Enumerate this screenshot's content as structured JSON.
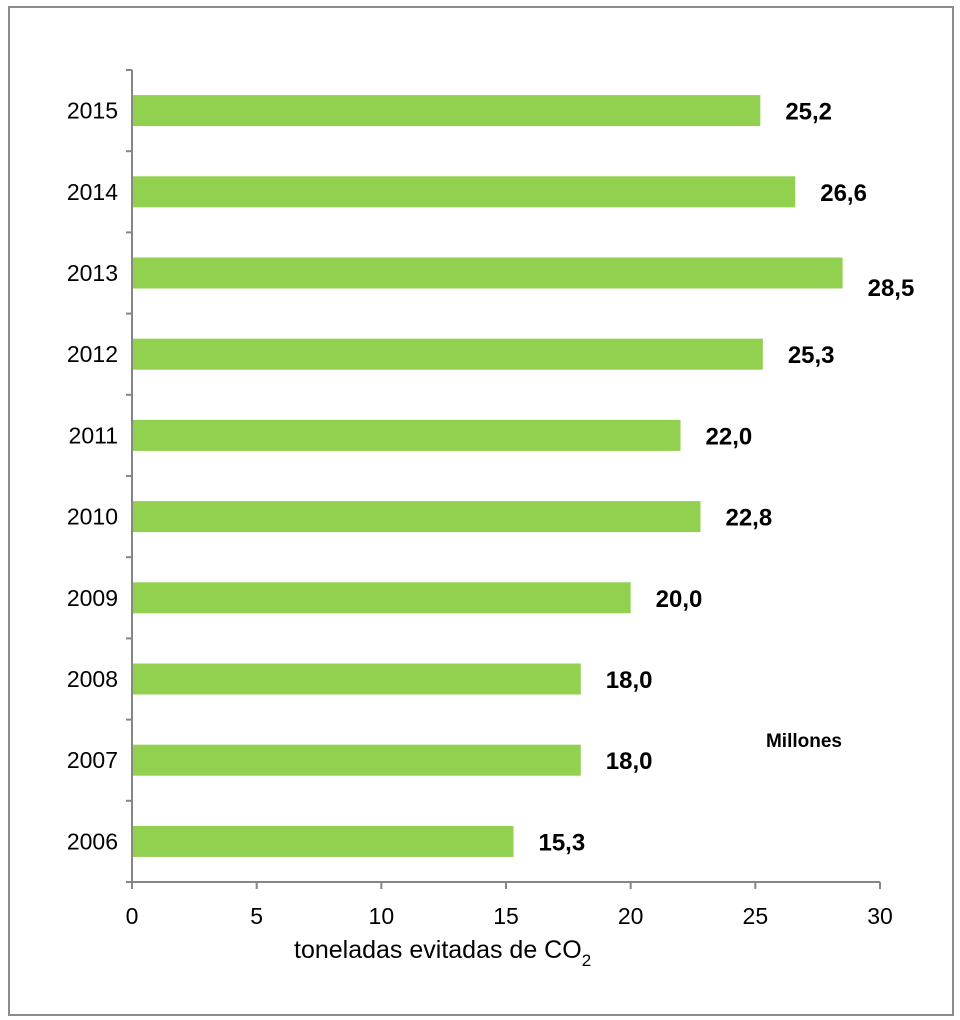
{
  "chart_data": {
    "type": "bar",
    "orientation": "horizontal",
    "categories": [
      "2015",
      "2014",
      "2013",
      "2012",
      "2011",
      "2010",
      "2009",
      "2008",
      "2007",
      "2006"
    ],
    "values": [
      25.2,
      26.6,
      28.5,
      25.3,
      22.0,
      22.8,
      20.0,
      18.0,
      18.0,
      15.3
    ],
    "data_labels": [
      "25,2",
      "26,6",
      "28,5",
      "25,3",
      "22,0",
      "22,8",
      "20,0",
      "18,0",
      "18,0",
      "15,3"
    ],
    "xlim": [
      0,
      30
    ],
    "xticks": [
      0,
      5,
      10,
      15,
      20,
      25,
      30
    ],
    "xtick_labels": [
      "0",
      "5",
      "10",
      "15",
      "20",
      "25",
      "30"
    ],
    "xlabel_main": "toneladas evitadas de CO",
    "xlabel_sub": "2",
    "unit_label": "Millones",
    "bar_color": "#92d050",
    "grid": false,
    "legend": "none"
  }
}
